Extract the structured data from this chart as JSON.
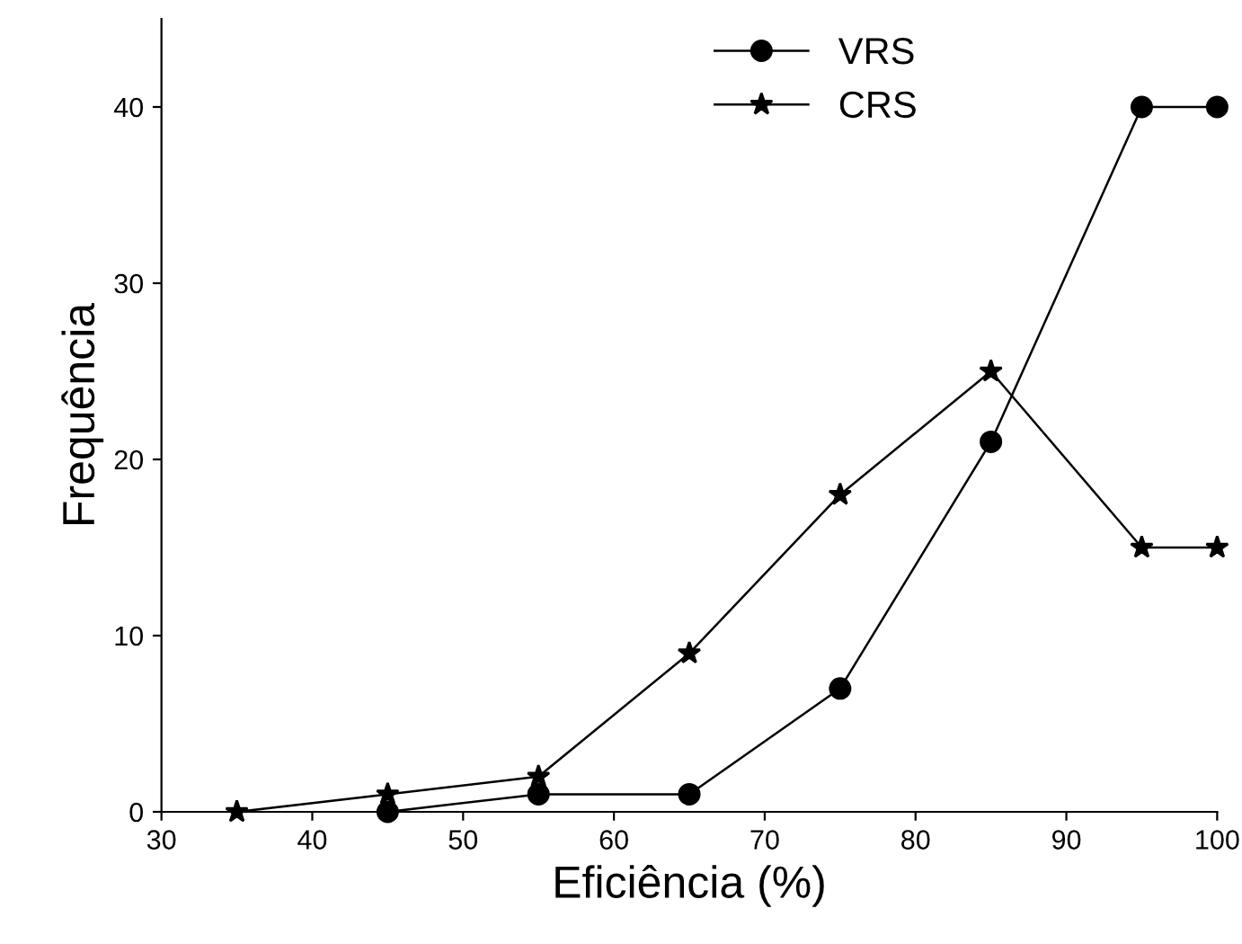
{
  "chart_data": {
    "type": "line",
    "xlabel": "Eficiência (%)",
    "ylabel": "Frequência",
    "xlim": [
      30,
      100
    ],
    "xticks": [
      30,
      40,
      50,
      60,
      70,
      80,
      90,
      100
    ],
    "ylim": [
      0,
      45
    ],
    "yticks": [
      0,
      10,
      20,
      30,
      40
    ],
    "grid": false,
    "legend": "top",
    "series": [
      {
        "name": "VRS",
        "color": "#000000",
        "marker": "circle",
        "x": [
          45,
          55,
          65,
          75,
          85,
          95,
          100
        ],
        "values": [
          0,
          1,
          1,
          7,
          21,
          40,
          40
        ]
      },
      {
        "name": "CRS",
        "color": "#000000",
        "marker": "star",
        "x": [
          35,
          45,
          55,
          65,
          75,
          85,
          95,
          100
        ],
        "values": [
          0,
          1,
          2,
          9,
          18,
          25,
          15,
          15
        ]
      }
    ]
  }
}
